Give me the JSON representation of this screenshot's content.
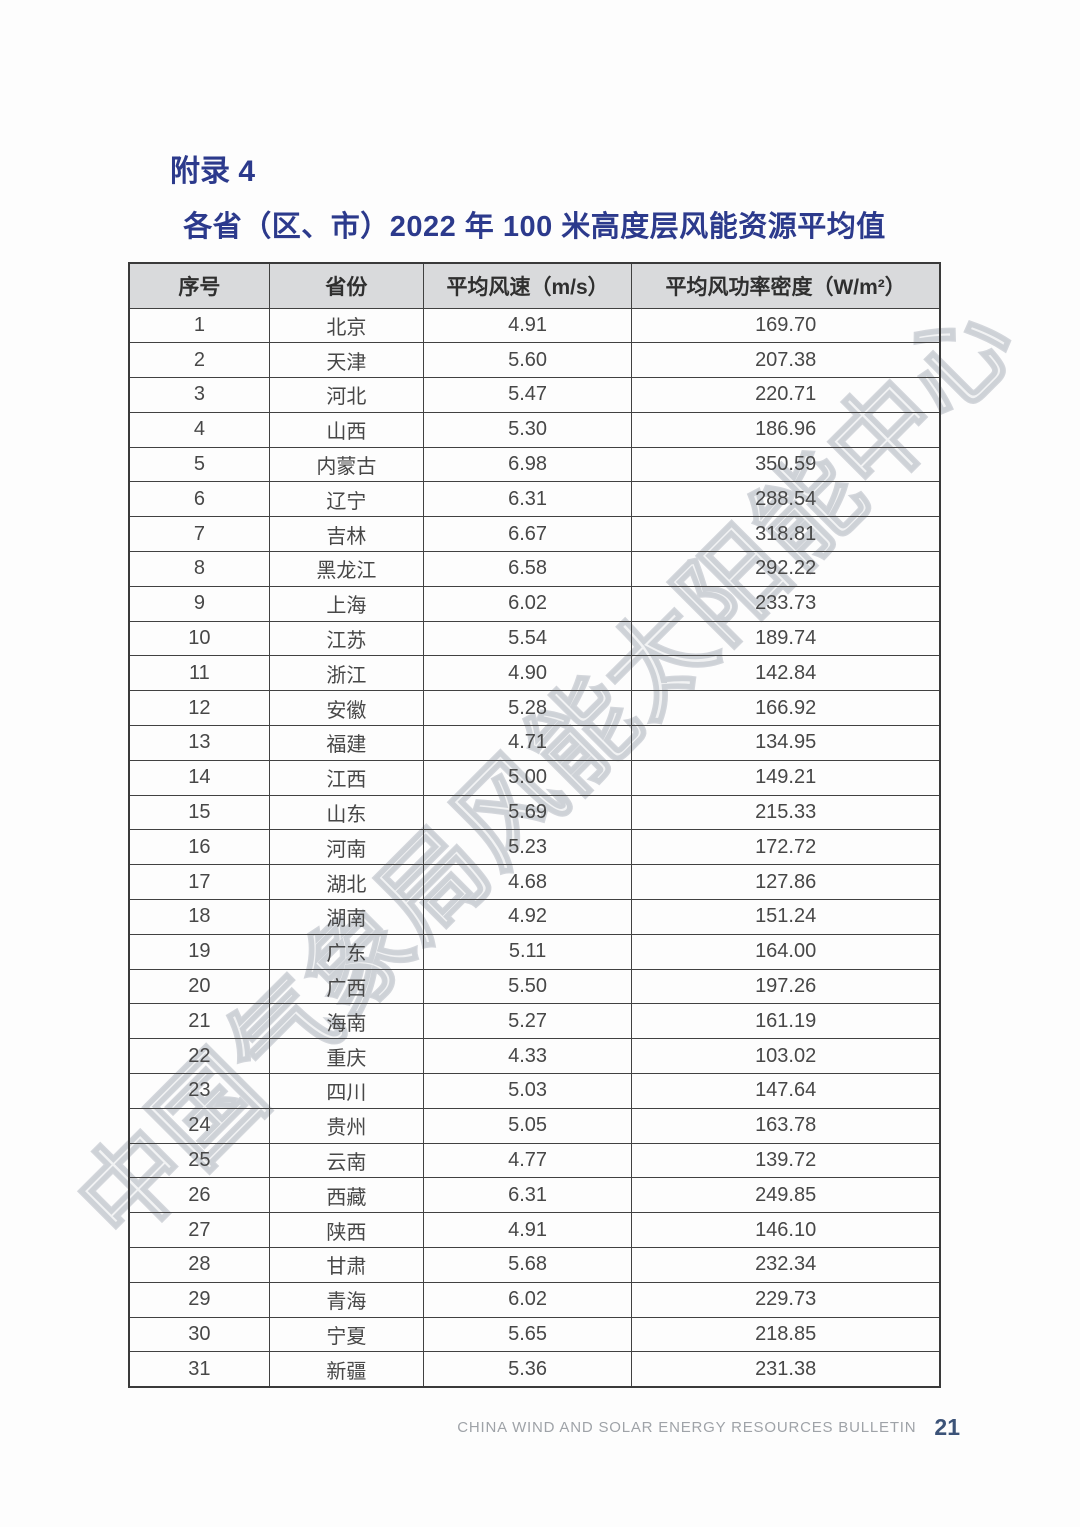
{
  "page": {
    "appendix_label": "附录 4",
    "table_title": "各省（区、市）2022 年 100 米高度层风能资源平均值",
    "watermark_text": "中国气象局风能太阳能中心",
    "footer": {
      "bulletin_name": "CHINA WIND AND SOLAR ENERGY RESOURCES BULLETIN",
      "page_number": "21"
    }
  },
  "colors": {
    "title_blue": "#2c3a8c",
    "page_number_blue": "#3c5378",
    "header_row_bg": "#d9dadc",
    "table_border": "#414141",
    "body_text": "#474747",
    "footer_gray": "#9fa3a8",
    "watermark_gray": "#b0b7c0"
  },
  "table": {
    "headers": [
      "序号",
      "省份",
      "平均风速（m/s）",
      "平均风功率密度（W/m²）"
    ],
    "column_widths_pct": [
      17.3,
      19.0,
      25.7,
      38.0
    ],
    "rows": [
      [
        "1",
        "北京",
        "4.91",
        "169.70"
      ],
      [
        "2",
        "天津",
        "5.60",
        "207.38"
      ],
      [
        "3",
        "河北",
        "5.47",
        "220.71"
      ],
      [
        "4",
        "山西",
        "5.30",
        "186.96"
      ],
      [
        "5",
        "内蒙古",
        "6.98",
        "350.59"
      ],
      [
        "6",
        "辽宁",
        "6.31",
        "288.54"
      ],
      [
        "7",
        "吉林",
        "6.67",
        "318.81"
      ],
      [
        "8",
        "黑龙江",
        "6.58",
        "292.22"
      ],
      [
        "9",
        "上海",
        "6.02",
        "233.73"
      ],
      [
        "10",
        "江苏",
        "5.54",
        "189.74"
      ],
      [
        "11",
        "浙江",
        "4.90",
        "142.84"
      ],
      [
        "12",
        "安徽",
        "5.28",
        "166.92"
      ],
      [
        "13",
        "福建",
        "4.71",
        "134.95"
      ],
      [
        "14",
        "江西",
        "5.00",
        "149.21"
      ],
      [
        "15",
        "山东",
        "5.69",
        "215.33"
      ],
      [
        "16",
        "河南",
        "5.23",
        "172.72"
      ],
      [
        "17",
        "湖北",
        "4.68",
        "127.86"
      ],
      [
        "18",
        "湖南",
        "4.92",
        "151.24"
      ],
      [
        "19",
        "广东",
        "5.11",
        "164.00"
      ],
      [
        "20",
        "广西",
        "5.50",
        "197.26"
      ],
      [
        "21",
        "海南",
        "5.27",
        "161.19"
      ],
      [
        "22",
        "重庆",
        "4.33",
        "103.02"
      ],
      [
        "23",
        "四川",
        "5.03",
        "147.64"
      ],
      [
        "24",
        "贵州",
        "5.05",
        "163.78"
      ],
      [
        "25",
        "云南",
        "4.77",
        "139.72"
      ],
      [
        "26",
        "西藏",
        "6.31",
        "249.85"
      ],
      [
        "27",
        "陕西",
        "4.91",
        "146.10"
      ],
      [
        "28",
        "甘肃",
        "5.68",
        "232.34"
      ],
      [
        "29",
        "青海",
        "6.02",
        "229.73"
      ],
      [
        "30",
        "宁夏",
        "5.65",
        "218.85"
      ],
      [
        "31",
        "新疆",
        "5.36",
        "231.38"
      ]
    ]
  }
}
